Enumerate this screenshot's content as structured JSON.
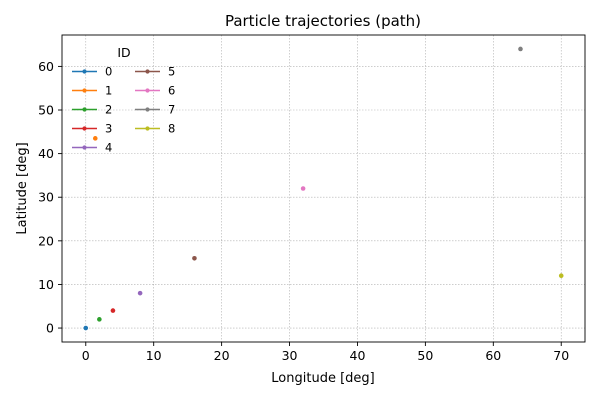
{
  "chart_data": {
    "type": "scatter",
    "title": "Particle trajectories (path)",
    "xlabel": "Longitude [deg]",
    "ylabel": "Latitude [deg]",
    "xlim": [
      -3.5,
      73.5
    ],
    "ylim": [
      -3.2,
      67.2
    ],
    "xticks": [
      0,
      10,
      20,
      30,
      40,
      50,
      60,
      70
    ],
    "yticks": [
      0,
      10,
      20,
      30,
      40,
      50,
      60
    ],
    "grid": true,
    "legend_title": "ID",
    "legend_position": "top-left",
    "series": [
      {
        "name": "0",
        "color": "#1f77b4",
        "x": [
          0
        ],
        "y": [
          0
        ]
      },
      {
        "name": "1",
        "color": "#ff7f0e",
        "x": [
          1.4
        ],
        "y": [
          43.5
        ]
      },
      {
        "name": "2",
        "color": "#2ca02c",
        "x": [
          2
        ],
        "y": [
          2
        ]
      },
      {
        "name": "3",
        "color": "#d62728",
        "x": [
          4
        ],
        "y": [
          4
        ]
      },
      {
        "name": "4",
        "color": "#9467bd",
        "x": [
          8
        ],
        "y": [
          8
        ]
      },
      {
        "name": "5",
        "color": "#8c564b",
        "x": [
          16
        ],
        "y": [
          16
        ]
      },
      {
        "name": "6",
        "color": "#e377c2",
        "x": [
          32
        ],
        "y": [
          32
        ]
      },
      {
        "name": "7",
        "color": "#7f7f7f",
        "x": [
          64
        ],
        "y": [
          64
        ]
      },
      {
        "name": "8",
        "color": "#bcbd22",
        "x": [
          70
        ],
        "y": [
          12
        ]
      }
    ]
  }
}
